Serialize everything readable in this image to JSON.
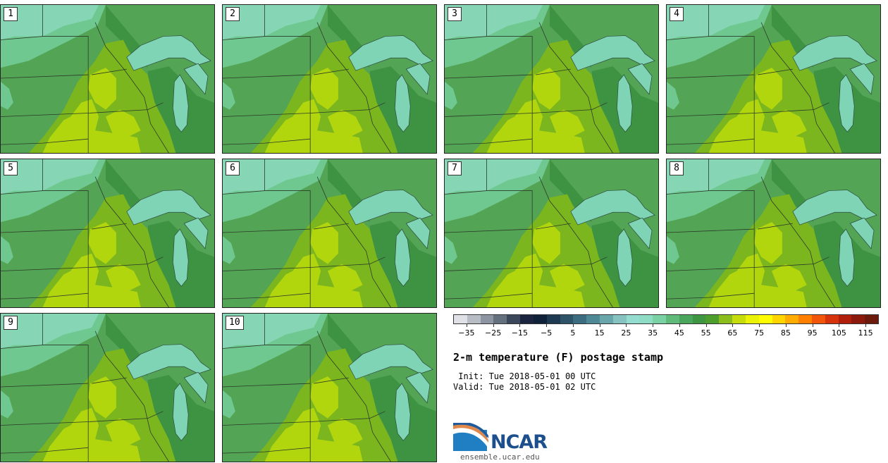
{
  "panels": [
    {
      "label": "1"
    },
    {
      "label": "2"
    },
    {
      "label": "3"
    },
    {
      "label": "4"
    },
    {
      "label": "5"
    },
    {
      "label": "6"
    },
    {
      "label": "7"
    },
    {
      "label": "8"
    },
    {
      "label": "9"
    },
    {
      "label": "10"
    }
  ],
  "colorbar": {
    "colors": [
      "#dfe1e6",
      "#b7bcc5",
      "#8d95a3",
      "#65707f",
      "#3a475a",
      "#1b2540",
      "#10213a",
      "#1d3a52",
      "#2d5368",
      "#3b6c7f",
      "#4e8896",
      "#68a6ac",
      "#86c2c0",
      "#94dcd0",
      "#8fdcc4",
      "#7ad2a4",
      "#60bb7b",
      "#4aa65c",
      "#3e9542",
      "#4d9e2c",
      "#8bbe1c",
      "#c6dc0b",
      "#eaf205",
      "#fffb00",
      "#ffd500",
      "#ffac00",
      "#ff8000",
      "#f2560a",
      "#d6320c",
      "#b21e0c",
      "#8c1a0c",
      "#6b1a0c"
    ],
    "ticks": [
      "−35",
      "−25",
      "−15",
      "−5",
      "5",
      "15",
      "25",
      "35",
      "45",
      "55",
      "65",
      "75",
      "85",
      "95",
      "105",
      "115"
    ]
  },
  "title": "2-m temperature (F) postage stamp",
  "init": " Init: Tue 2018-05-01 00 UTC",
  "valid": "Valid: Tue 2018-05-01 02 UTC",
  "logo": {
    "name": "NCAR",
    "url": "ensemble.ucar.edu"
  },
  "map_colors": {
    "temp_45": "#6fc88f",
    "temp_50": "#54a455",
    "temp_55": "#3e9342",
    "temp_60": "#7cb61e",
    "temp_65": "#b2d60e",
    "lake": "#7ed4b4",
    "cold": "#86d6b6"
  }
}
